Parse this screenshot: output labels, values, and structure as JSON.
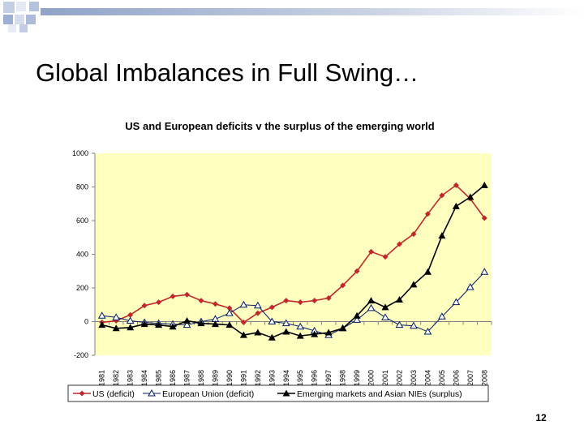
{
  "slide": {
    "title": "Global Imbalances in Full Swing…",
    "page_number": "12"
  },
  "colors": {
    "plot_background": "#FFFFC0",
    "chart_background": "#FFFFFF",
    "series": [
      "#C0282B",
      "#001A66",
      "#000000"
    ]
  },
  "chart_data": {
    "type": "line",
    "title": "US and European deficits v the surplus of the emerging world",
    "xlabel": "",
    "ylabel": "",
    "ylim": [
      -200,
      1000
    ],
    "y_ticks": [
      -200,
      0,
      200,
      400,
      600,
      800,
      1000
    ],
    "grid": false,
    "legend_position": "bottom",
    "x": [
      "1981",
      "1982",
      "1983",
      "1984",
      "1985",
      "1986",
      "1987",
      "1988",
      "1989",
      "1990",
      "1991",
      "1992",
      "1993",
      "1994",
      "1995",
      "1996",
      "1997",
      "1998",
      "1999",
      "2000",
      "2001",
      "2002",
      "2003",
      "2004",
      "2005",
      "2006",
      "2007",
      "2008"
    ],
    "series": [
      {
        "name": "US (deficit)",
        "marker": "diamond",
        "values": [
          -5,
          5,
          40,
          95,
          115,
          150,
          160,
          125,
          105,
          80,
          -5,
          50,
          85,
          125,
          115,
          125,
          140,
          215,
          300,
          415,
          385,
          460,
          520,
          640,
          750,
          810,
          730,
          615
        ]
      },
      {
        "name": "European Union (deficit)",
        "marker": "open-triangle",
        "values": [
          35,
          25,
          5,
          -5,
          -10,
          -15,
          -20,
          0,
          15,
          50,
          100,
          95,
          0,
          -10,
          -30,
          -55,
          -80,
          -40,
          10,
          80,
          25,
          -20,
          -25,
          -60,
          30,
          115,
          205,
          295
        ]
      },
      {
        "name": "Emerging markets and Asian NIEs (surplus)",
        "marker": "filled-triangle",
        "values": [
          -20,
          -40,
          -35,
          -15,
          -20,
          -30,
          5,
          -10,
          -15,
          -20,
          -80,
          -65,
          -95,
          -60,
          -85,
          -75,
          -65,
          -40,
          35,
          125,
          85,
          130,
          220,
          295,
          510,
          685,
          740,
          810
        ]
      }
    ]
  }
}
